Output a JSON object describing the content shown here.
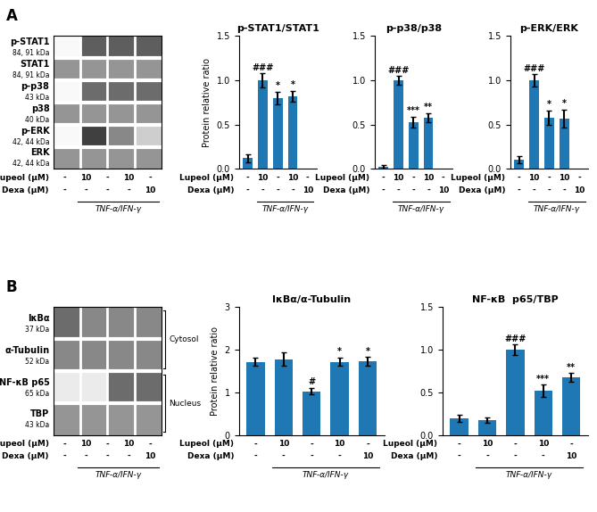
{
  "chart_data": [
    {
      "type": "heatmap",
      "panel_label": "A",
      "rows": [
        "p-STAT1",
        "STAT1",
        "p-p38",
        "p38",
        "p-ERK",
        "ERK"
      ],
      "row_sublabels": [
        "84, 91 kDa",
        "84, 91 kDa",
        "43 kDa",
        "40 kDa",
        "42, 44 kDa",
        "42, 44 kDa"
      ],
      "cells": [
        [
          0.05,
          0.7,
          0.7,
          0.7
        ],
        [
          0.5,
          0.5,
          0.5,
          0.5
        ],
        [
          0.05,
          0.65,
          0.65,
          0.65
        ],
        [
          0.5,
          0.5,
          0.5,
          0.5
        ],
        [
          0.05,
          0.8,
          0.55,
          0.3
        ],
        [
          0.5,
          0.5,
          0.5,
          0.5
        ]
      ],
      "color_range": [
        0,
        1
      ],
      "table": {
        "row_labels": [
          "Lupeol (μM)",
          "Dexa (μM)"
        ],
        "rows": [
          [
            "-",
            "10",
            "-",
            "10",
            "-"
          ],
          [
            "-",
            "-",
            "-",
            "-",
            "10"
          ]
        ],
        "bracket_label": "TNF-α/IFN-γ"
      }
    },
    {
      "type": "bar",
      "title": "p-STAT1/STAT1",
      "ylabel": "Protein relative ratio",
      "ylim": [
        0,
        1.5
      ],
      "yticks": [
        0.0,
        0.5,
        1.0,
        1.5
      ],
      "values": [
        0.12,
        1.0,
        0.8,
        0.82
      ],
      "errors": [
        0.05,
        0.08,
        0.07,
        0.06
      ],
      "annotations": [
        null,
        "###",
        "*",
        "*"
      ],
      "table": {
        "row_labels": [
          "Lupeol (μM)",
          "Dexa (μM)"
        ],
        "rows": [
          [
            "-",
            "10",
            "-",
            "10",
            "-"
          ],
          [
            "-",
            "-",
            "-",
            "-",
            "10"
          ]
        ],
        "bracket_label": "TNF-α/IFN-γ"
      }
    },
    {
      "type": "bar",
      "title": "p-p38/p38",
      "ylim": [
        0,
        1.5
      ],
      "yticks": [
        0.0,
        0.5,
        1.0,
        1.5
      ],
      "values": [
        0.02,
        1.0,
        0.53,
        0.58
      ],
      "errors": [
        0.02,
        0.05,
        0.06,
        0.05
      ],
      "annotations": [
        null,
        "###",
        "***",
        "**"
      ],
      "table": {
        "row_labels": [
          "Lupeol (μM)",
          "Dexa (μM)"
        ],
        "rows": [
          [
            "-",
            "10",
            "-",
            "10",
            "-"
          ],
          [
            "-",
            "-",
            "-",
            "-",
            "10"
          ]
        ],
        "bracket_label": "TNF-α/IFN-γ"
      }
    },
    {
      "type": "bar",
      "title": "p-ERK/ERK",
      "ylim": [
        0,
        1.5
      ],
      "yticks": [
        0.0,
        0.5,
        1.0,
        1.5
      ],
      "values": [
        0.1,
        1.0,
        0.58,
        0.57
      ],
      "errors": [
        0.04,
        0.07,
        0.08,
        0.1
      ],
      "annotations": [
        null,
        "###",
        "*",
        "*"
      ],
      "table": {
        "row_labels": [
          "Lupeol (μM)",
          "Dexa (μM)"
        ],
        "rows": [
          [
            "-",
            "10",
            "-",
            "10",
            "-"
          ],
          [
            "-",
            "-",
            "-",
            "-",
            "10"
          ]
        ],
        "bracket_label": "TNF-α/IFN-γ"
      }
    },
    {
      "type": "heatmap",
      "panel_label": "B",
      "rows": [
        "IκBα",
        "α-Tubulin",
        "NF-κB p65",
        "TBP"
      ],
      "row_sublabels": [
        "37 kDa",
        "52 kDa",
        "65 kDa",
        "43 kDa"
      ],
      "groups": [
        {
          "label": "Cytosol",
          "rows": [
            "IκBα",
            "α-Tubulin"
          ]
        },
        {
          "label": "Nucleus",
          "rows": [
            "NF-κB p65",
            "TBP"
          ]
        }
      ],
      "cells": [
        [
          0.65,
          0.55,
          0.55,
          0.55
        ],
        [
          0.55,
          0.55,
          0.55,
          0.55
        ],
        [
          0.15,
          0.15,
          0.65,
          0.65
        ],
        [
          0.5,
          0.5,
          0.5,
          0.5
        ]
      ],
      "color_range": [
        0,
        1
      ],
      "table": {
        "row_labels": [
          "Lupeol (μM)",
          "Dexa (μM)"
        ],
        "rows": [
          [
            "-",
            "10",
            "-",
            "10",
            "-"
          ],
          [
            "-",
            "-",
            "-",
            "-",
            "10"
          ]
        ],
        "bracket_label": "TNF-α/IFN-γ"
      }
    },
    {
      "type": "bar",
      "title": "IκBα/α-Tubulin",
      "ylabel": "Protein relative ratio",
      "ylim": [
        0,
        3
      ],
      "yticks": [
        0,
        1,
        2,
        3
      ],
      "values": [
        1.72,
        1.78,
        1.03,
        1.72,
        1.73
      ],
      "errors": [
        0.1,
        0.16,
        0.08,
        0.1,
        0.1
      ],
      "annotations": [
        null,
        null,
        "#",
        "*",
        "*"
      ],
      "table": {
        "row_labels": [
          "Lupeol (μM)",
          "Dexa (μM)"
        ],
        "rows": [
          [
            "-",
            "10",
            "-",
            "10",
            "-"
          ],
          [
            "-",
            "-",
            "-",
            "-",
            "10"
          ]
        ],
        "bracket_label": "TNF-α/IFN-γ"
      }
    },
    {
      "type": "bar",
      "title": "NF-κB  p65/TBP",
      "ylim": [
        0,
        1.5
      ],
      "yticks": [
        0.0,
        0.5,
        1.0,
        1.5
      ],
      "values": [
        0.2,
        0.18,
        1.0,
        0.52,
        0.68
      ],
      "errors": [
        0.04,
        0.03,
        0.06,
        0.07,
        0.05
      ],
      "annotations": [
        null,
        null,
        "###",
        "***",
        "**"
      ],
      "table": {
        "row_labels": [
          "Lupeol (μM)",
          "Dexa (μM)"
        ],
        "rows": [
          [
            "-",
            "10",
            "-",
            "10",
            "-"
          ],
          [
            "-",
            "-",
            "-",
            "-",
            "10"
          ]
        ],
        "bracket_label": "TNF-α/IFN-γ"
      }
    }
  ]
}
